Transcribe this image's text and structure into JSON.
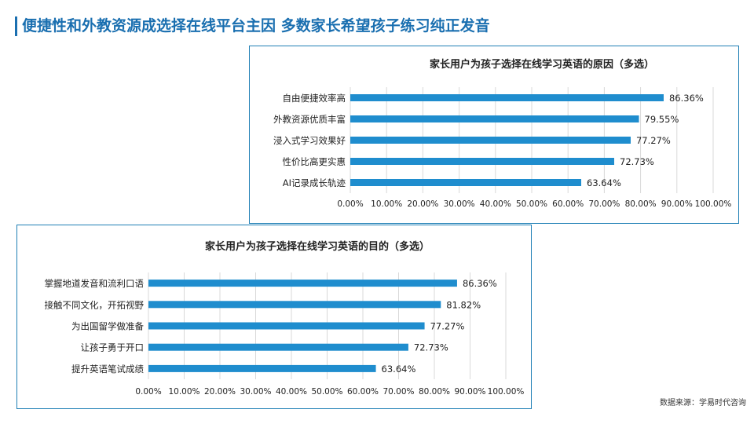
{
  "page": {
    "title": "便捷性和外教资源成选择在线平台主因  多数家长希望孩子练习纯正发音",
    "source": "数据来源：学易时代咨询"
  },
  "colors": {
    "accent": "#1a6fb0",
    "bar": "#1f8dce",
    "border": "#1f7fb5",
    "grid": "#d9d9d9"
  },
  "chart_data": [
    {
      "type": "bar",
      "orientation": "horizontal",
      "title": "家长用户为孩子选择在线学习英语的原因（多选）",
      "categories": [
        "自由便捷效率高",
        "外教资源优质丰富",
        "浸入式学习效果好",
        "性价比高更实惠",
        "AI记录成长轨迹"
      ],
      "values": [
        86.36,
        79.55,
        77.27,
        72.73,
        63.64
      ],
      "value_labels": [
        "86.36%",
        "79.55%",
        "77.27%",
        "72.73%",
        "63.64%"
      ],
      "xlim": [
        0,
        100
      ],
      "xticks": [
        "0.00%",
        "10.00%",
        "20.00%",
        "30.00%",
        "40.00%",
        "50.00%",
        "60.00%",
        "70.00%",
        "80.00%",
        "90.00%",
        "100.00%"
      ],
      "grid": true,
      "legend": "none"
    },
    {
      "type": "bar",
      "orientation": "horizontal",
      "title": "家长用户为孩子选择在线学习英语的目的（多选）",
      "categories": [
        "掌握地道发音和流利口语",
        "接触不同文化，开拓视野",
        "为出国留学做准备",
        "让孩子勇于开口",
        "提升英语笔试成绩"
      ],
      "values": [
        86.36,
        81.82,
        77.27,
        72.73,
        63.64
      ],
      "value_labels": [
        "86.36%",
        "81.82%",
        "77.27%",
        "72.73%",
        "63.64%"
      ],
      "xlim": [
        0,
        100
      ],
      "xticks": [
        "0.00%",
        "10.00%",
        "20.00%",
        "30.00%",
        "40.00%",
        "50.00%",
        "60.00%",
        "70.00%",
        "80.00%",
        "90.00%",
        "100.00%"
      ],
      "grid": true,
      "legend": "none"
    }
  ]
}
